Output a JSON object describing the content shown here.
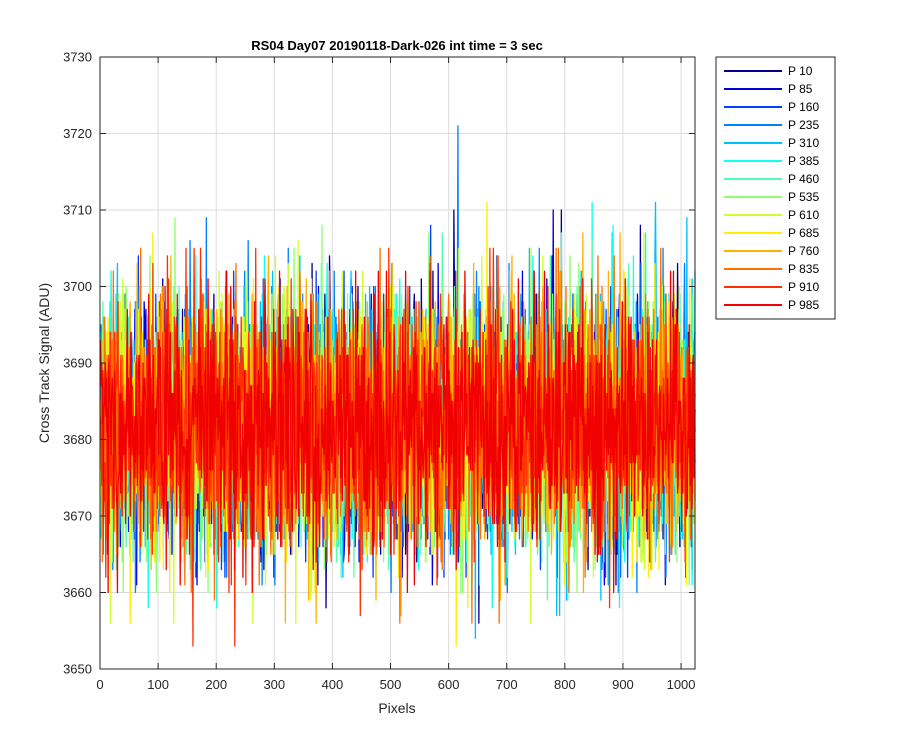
{
  "chart_data": {
    "type": "line",
    "title": "RS04 Day07 20190118-Dark-026 int time = 3 sec",
    "xlabel": "Pixels",
    "ylabel": "Cross Track Signal (ADU)",
    "xlim": [
      0,
      1024
    ],
    "ylim": [
      3650,
      3730
    ],
    "xticks": [
      0,
      100,
      200,
      300,
      400,
      500,
      600,
      700,
      800,
      900,
      1000
    ],
    "yticks": [
      3650,
      3660,
      3670,
      3680,
      3690,
      3700,
      3710,
      3720,
      3730
    ],
    "grid": true,
    "legend_position": "outside-top-right",
    "n_points": 1024,
    "series": [
      {
        "name": "P 10",
        "color": "#00008f",
        "mean": 3682,
        "min": 3656,
        "max": 3710
      },
      {
        "name": "P 85",
        "color": "#0000dc",
        "mean": 3682,
        "min": 3661,
        "max": 3710
      },
      {
        "name": "P 160",
        "color": "#0040ff",
        "mean": 3682,
        "min": 3662,
        "max": 3708
      },
      {
        "name": "P 235",
        "color": "#0080ff",
        "mean": 3682,
        "min": 3660,
        "max": 3721
      },
      {
        "name": "P 310",
        "color": "#00c0ff",
        "mean": 3682,
        "min": 3654,
        "max": 3711
      },
      {
        "name": "P 385",
        "color": "#10ffef",
        "mean": 3682,
        "min": 3658,
        "max": 3711
      },
      {
        "name": "P 460",
        "color": "#50ffaf",
        "mean": 3682,
        "min": 3659,
        "max": 3707
      },
      {
        "name": "P 535",
        "color": "#8fff70",
        "mean": 3682,
        "min": 3660,
        "max": 3709
      },
      {
        "name": "P 610",
        "color": "#cfff30",
        "mean": 3682,
        "min": 3656,
        "max": 3707
      },
      {
        "name": "P 685",
        "color": "#ffef00",
        "mean": 3682,
        "min": 3653,
        "max": 3711
      },
      {
        "name": "P 760",
        "color": "#ffb000",
        "mean": 3682,
        "min": 3656,
        "max": 3707
      },
      {
        "name": "P 835",
        "color": "#ff7000",
        "mean": 3682,
        "min": 3656,
        "max": 3705
      },
      {
        "name": "P 910",
        "color": "#ff3000",
        "mean": 3682,
        "min": 3653,
        "max": 3705
      },
      {
        "name": "P 985",
        "color": "#f00000",
        "mean": 3682,
        "min": 3660,
        "max": 3702
      }
    ]
  }
}
